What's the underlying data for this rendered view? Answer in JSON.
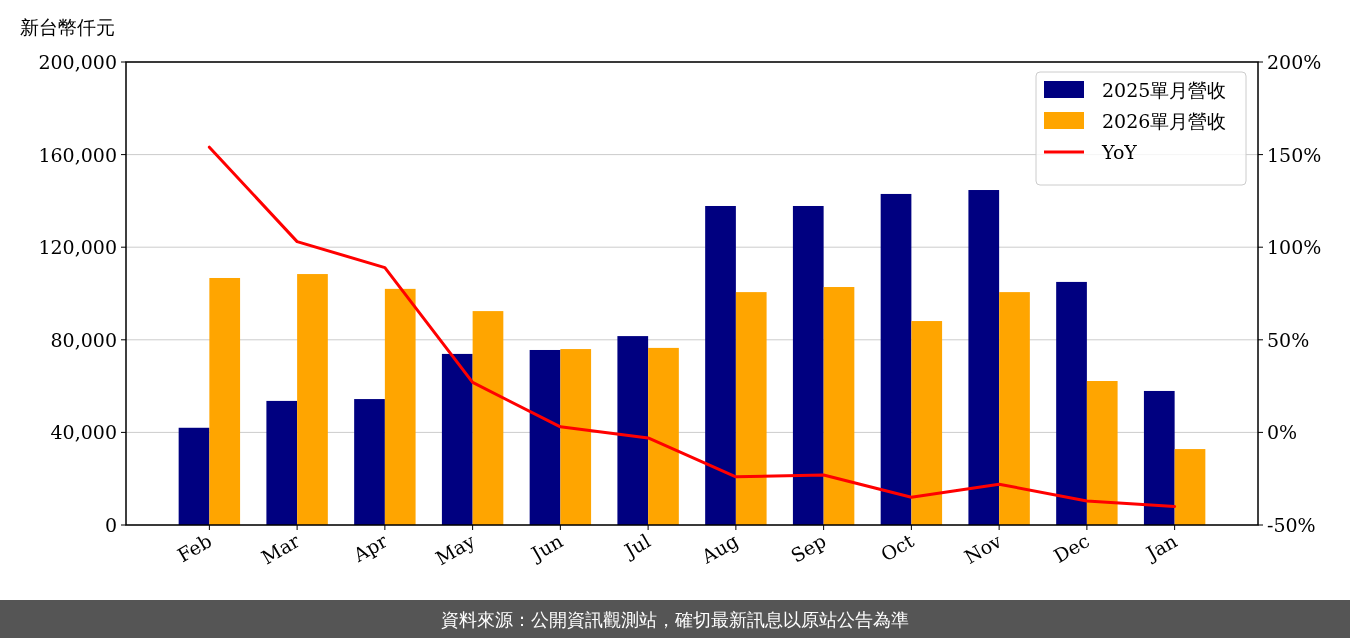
{
  "chart_data": {
    "type": "bar",
    "ylabel": "新台幣仟元",
    "categories": [
      "Feb",
      "Mar",
      "Apr",
      "May",
      "Jun",
      "Jul",
      "Aug",
      "Sep",
      "Oct",
      "Nov",
      "Dec",
      "Jan"
    ],
    "series": [
      {
        "name": "2025單月營收",
        "color": "#000080",
        "values": [
          42000,
          53600,
          54400,
          73900,
          75600,
          81600,
          137800,
          137800,
          143000,
          144700,
          105000,
          57900
        ]
      },
      {
        "name": "2026單月營收",
        "color": "#ffa500",
        "values": [
          106700,
          108400,
          102000,
          92400,
          76000,
          76500,
          100600,
          102800,
          88100,
          100600,
          62200,
          32800
        ]
      },
      {
        "name": "YoY",
        "type": "line",
        "axis": "y2",
        "color": "#ff0000",
        "values": [
          154,
          103,
          89,
          27,
          3,
          -3,
          -24,
          -23,
          -35,
          -28,
          -37,
          -40
        ]
      }
    ],
    "ylim": [
      0,
      200000
    ],
    "yticks": [
      {
        "value": 0,
        "label": "0"
      },
      {
        "value": 40000,
        "label": "40,000"
      },
      {
        "value": 80000,
        "label": "80,000"
      },
      {
        "value": 120000,
        "label": "120,000"
      },
      {
        "value": 160000,
        "label": "160,000"
      },
      {
        "value": 200000,
        "label": "200,000"
      }
    ],
    "y2lim": [
      -50,
      200
    ],
    "y2ticks": [
      {
        "value": -50,
        "label": "-50%"
      },
      {
        "value": 0,
        "label": "0%"
      },
      {
        "value": 50,
        "label": "50%"
      },
      {
        "value": 100,
        "label": "100%"
      },
      {
        "value": 150,
        "label": "150%"
      },
      {
        "value": 200,
        "label": "200%"
      }
    ],
    "grid": "y",
    "legend": "top right",
    "annotations": [
      "資料來源：公開資訊觀測站，確切最新訊息以原站公告為準"
    ]
  }
}
